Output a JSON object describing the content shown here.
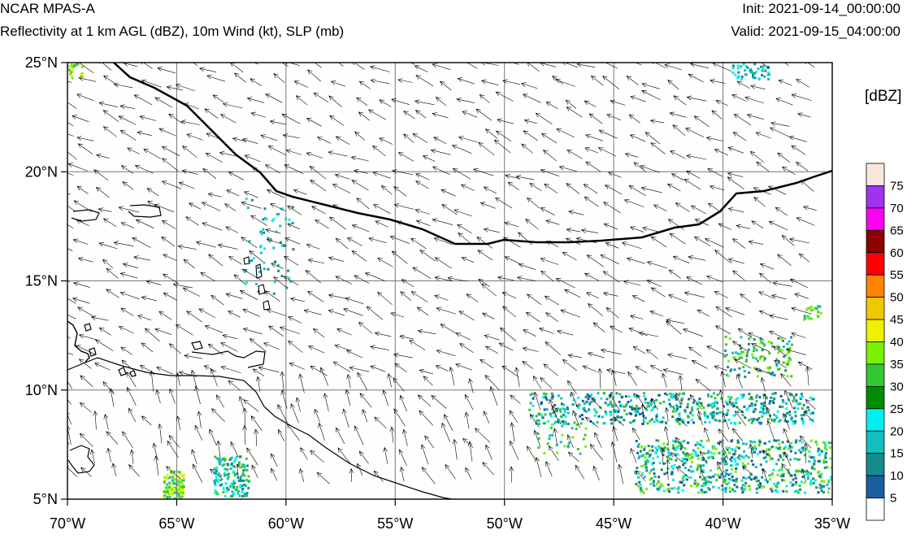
{
  "header": {
    "model": "NCAR MPAS-A",
    "fields": "Reflectivity at 1 km AGL (dBZ), 10m Wind (kt), SLP (mb)",
    "init": "Init: 2021-09-14_00:00:00",
    "valid": "Valid: 2021-09-15_04:00:00"
  },
  "map": {
    "lon_labels": [
      "70°W",
      "65°W",
      "60°W",
      "55°W",
      "50°W",
      "45°W",
      "40°W",
      "35°W"
    ],
    "lat_labels": [
      "25°N",
      "20°N",
      "15°N",
      "10°N",
      "5°N"
    ],
    "lon_range": [
      -70,
      -35
    ],
    "lat_range": [
      5,
      25
    ],
    "grid": true
  },
  "colorbar": {
    "title": "[dBZ]",
    "ticks": [
      "5",
      "10",
      "15",
      "20",
      "25",
      "30",
      "35",
      "40",
      "45",
      "50",
      "55",
      "60",
      "65",
      "70",
      "75"
    ],
    "colors": [
      "#ffffff",
      "#1a5ea0",
      "#148c8c",
      "#14bebe",
      "#00f0f0",
      "#008c00",
      "#32c832",
      "#78f000",
      "#f0f000",
      "#f0c800",
      "#ff8200",
      "#ff0000",
      "#8c0000",
      "#ff00f0",
      "#a032f0",
      "#fae6dc"
    ]
  }
}
